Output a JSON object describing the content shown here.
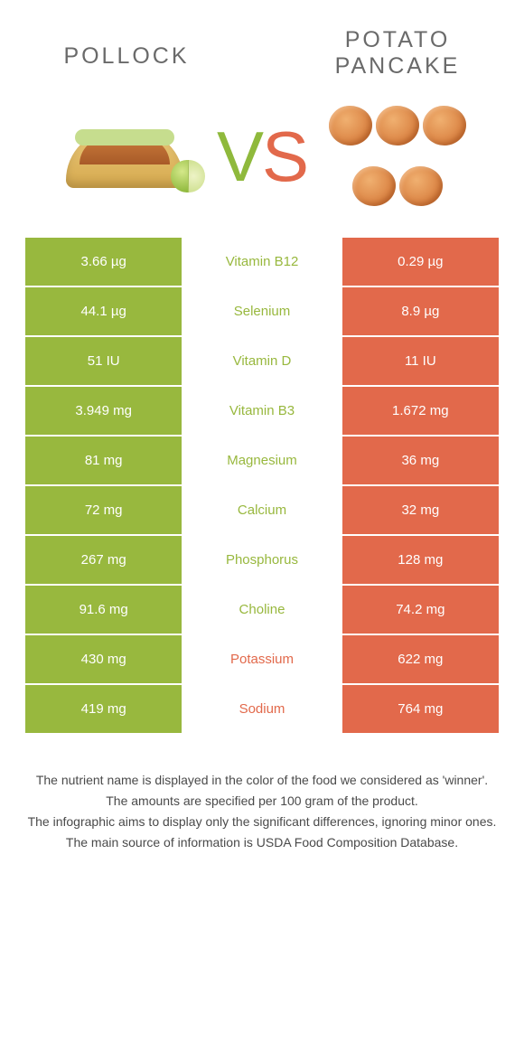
{
  "colors": {
    "left": "#98b83e",
    "right": "#e2694b",
    "background": "#ffffff",
    "text_grey": "#6a6a6a"
  },
  "header": {
    "left_title": "Pollock",
    "right_title_line1": "Potato",
    "right_title_line2": "pancake"
  },
  "vs": {
    "v": "V",
    "s": "S"
  },
  "rows": [
    {
      "left": "3.66 µg",
      "mid": "Vitamin B12",
      "right": "0.29 µg",
      "winner": "left"
    },
    {
      "left": "44.1 µg",
      "mid": "Selenium",
      "right": "8.9 µg",
      "winner": "left"
    },
    {
      "left": "51 IU",
      "mid": "Vitamin D",
      "right": "11 IU",
      "winner": "left"
    },
    {
      "left": "3.949 mg",
      "mid": "Vitamin B3",
      "right": "1.672 mg",
      "winner": "left"
    },
    {
      "left": "81 mg",
      "mid": "Magnesium",
      "right": "36 mg",
      "winner": "left"
    },
    {
      "left": "72 mg",
      "mid": "Calcium",
      "right": "32 mg",
      "winner": "left"
    },
    {
      "left": "267 mg",
      "mid": "Phosphorus",
      "right": "128 mg",
      "winner": "left"
    },
    {
      "left": "91.6 mg",
      "mid": "Choline",
      "right": "74.2 mg",
      "winner": "left"
    },
    {
      "left": "430 mg",
      "mid": "Potassium",
      "right": "622 mg",
      "winner": "right"
    },
    {
      "left": "419 mg",
      "mid": "Sodium",
      "right": "764 mg",
      "winner": "right"
    }
  ],
  "footnotes": [
    "The nutrient name is displayed in the color of the food we considered as 'winner'.",
    "The amounts are specified per 100 gram of the product.",
    "The infographic aims to display only the significant differences, ignoring minor ones.",
    "The main source of information is USDA Food Composition Database."
  ]
}
